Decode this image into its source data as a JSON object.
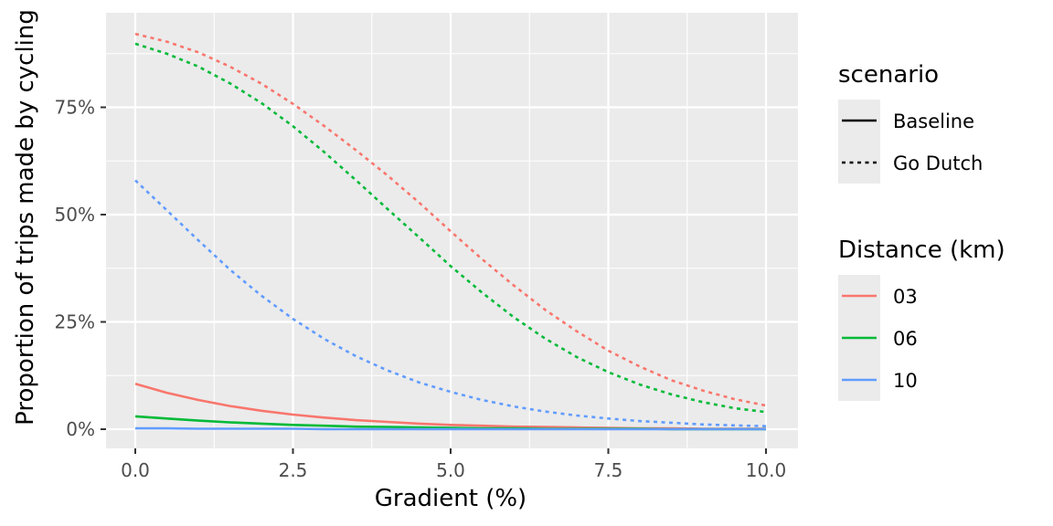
{
  "chart_data": {
    "type": "line",
    "title": "",
    "xlabel": "Gradient (%)",
    "ylabel": "Proportion of trips made by cycling",
    "xlim": [
      0,
      10
    ],
    "ylim": [
      0,
      1
    ],
    "x_ticks": [
      0,
      2.5,
      5,
      7.5,
      10
    ],
    "x_tick_labels": [
      "0.0",
      "2.5",
      "5.0",
      "7.5",
      "10.0"
    ],
    "y_ticks": [
      0,
      0.25,
      0.5,
      0.75
    ],
    "y_tick_labels": [
      "0%",
      "25%",
      "50%",
      "75%"
    ],
    "grid": true,
    "legend_position": "right",
    "x": [
      0,
      0.5,
      1,
      1.5,
      2,
      2.5,
      3,
      3.5,
      4,
      4.5,
      5,
      5.5,
      6,
      6.5,
      7,
      7.5,
      8,
      8.5,
      9,
      9.5,
      10
    ],
    "series": [
      {
        "distance": "03",
        "scenario": "Baseline",
        "color": "#F8766D",
        "dash": "solid",
        "values": [
          0.106,
          0.085,
          0.068,
          0.054,
          0.043,
          0.034,
          0.027,
          0.021,
          0.017,
          0.013,
          0.01,
          0.008,
          0.006,
          0.005,
          0.004,
          0.003,
          0.002,
          0.002,
          0.001,
          0.001,
          0.001
        ]
      },
      {
        "distance": "06",
        "scenario": "Baseline",
        "color": "#00BA38",
        "dash": "solid",
        "values": [
          0.03,
          0.025,
          0.02,
          0.016,
          0.013,
          0.01,
          0.008,
          0.006,
          0.005,
          0.004,
          0.003,
          0.002,
          0.002,
          0.001,
          0.001,
          0.001,
          0.001,
          0.0,
          0.0,
          0.0,
          0.0
        ]
      },
      {
        "distance": "10",
        "scenario": "Baseline",
        "color": "#619CFF",
        "dash": "solid",
        "values": [
          0.002,
          0.002,
          0.001,
          0.001,
          0.001,
          0.001,
          0.0,
          0.0,
          0.0,
          0.0,
          0.0,
          0.0,
          0.0,
          0.0,
          0.0,
          0.0,
          0.0,
          0.0,
          0.0,
          0.0,
          0.0
        ]
      },
      {
        "distance": "03",
        "scenario": "Go Dutch",
        "color": "#F8766D",
        "dash": "dashed",
        "values": [
          0.921,
          0.903,
          0.878,
          0.845,
          0.805,
          0.758,
          0.706,
          0.65,
          0.591,
          0.528,
          0.461,
          0.396,
          0.335,
          0.278,
          0.228,
          0.183,
          0.146,
          0.114,
          0.09,
          0.07,
          0.055
        ]
      },
      {
        "distance": "06",
        "scenario": "Go Dutch",
        "color": "#00BA38",
        "dash": "dashed",
        "values": [
          0.898,
          0.875,
          0.845,
          0.806,
          0.76,
          0.706,
          0.645,
          0.58,
          0.513,
          0.447,
          0.38,
          0.318,
          0.261,
          0.211,
          0.168,
          0.133,
          0.104,
          0.081,
          0.063,
          0.049,
          0.04
        ]
      },
      {
        "distance": "10",
        "scenario": "Go Dutch",
        "color": "#619CFF",
        "dash": "dashed",
        "values": [
          0.58,
          0.51,
          0.44,
          0.372,
          0.311,
          0.257,
          0.21,
          0.17,
          0.137,
          0.109,
          0.087,
          0.068,
          0.053,
          0.041,
          0.032,
          0.025,
          0.019,
          0.015,
          0.011,
          0.009,
          0.007
        ]
      }
    ],
    "legend": {
      "scenario": {
        "title": "scenario",
        "items": [
          {
            "label": "Baseline",
            "dash": "solid"
          },
          {
            "label": "Go Dutch",
            "dash": "dashed"
          }
        ]
      },
      "distance": {
        "title": "Distance (km)",
        "items": [
          {
            "label": "03",
            "color": "#F8766D"
          },
          {
            "label": "06",
            "color": "#00BA38"
          },
          {
            "label": "10",
            "color": "#619CFF"
          }
        ]
      }
    },
    "colors": {
      "panel_background": "#EBEBEB",
      "grid_major": "#FFFFFF",
      "tick_text": "#4D4D4D"
    }
  }
}
